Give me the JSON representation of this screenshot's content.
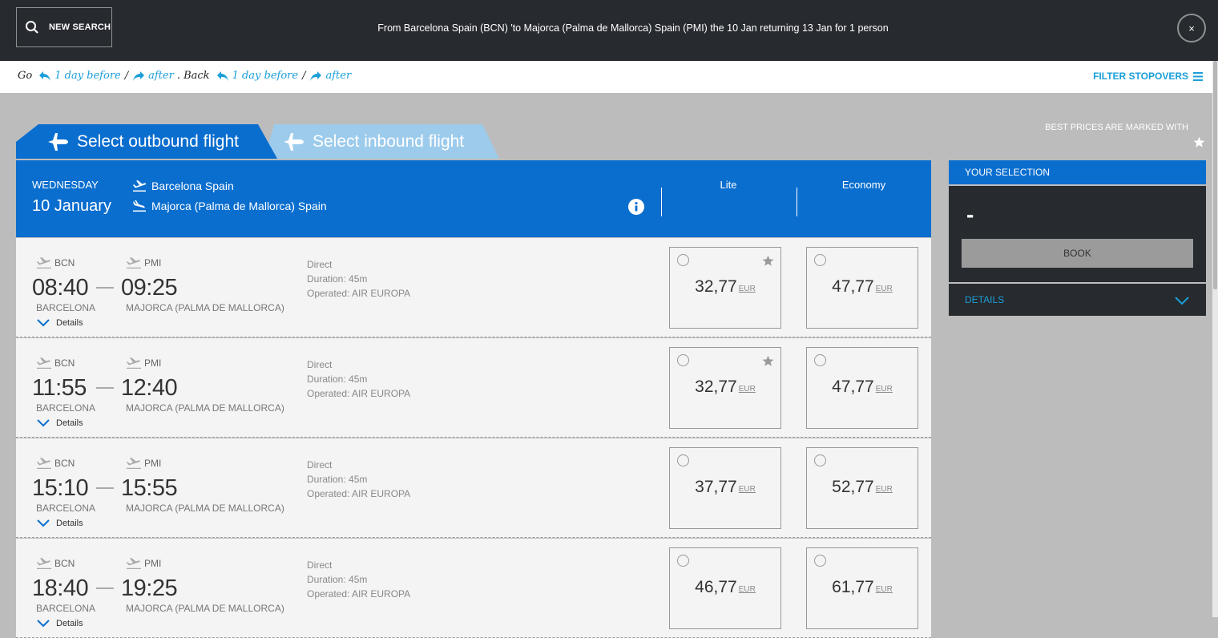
{
  "topbar": {
    "new_search_label": "NEW SEARCH",
    "summary": "From Barcelona Spain (BCN) 'to Majorca (Palma de Mallorca) Spain (PMI) the 10 Jan returning 13 Jan for 1 person",
    "close_label": "×"
  },
  "datenav": {
    "go_label": "Go",
    "go_before": "1 day before",
    "go_after": "after",
    "back_label": ". Back",
    "back_before": "1 day before",
    "back_after": "after",
    "separator": "/"
  },
  "filter_label": "FILTER STOPOVERS",
  "tabs": {
    "outbound": "Select outbound flight",
    "inbound": "Select inbound flight"
  },
  "best_prices_note": "BEST PRICES ARE MARKED WITH",
  "flight_header": {
    "weekday": "WEDNESDAY",
    "date": "10 January",
    "origin": "Barcelona Spain",
    "destination": "Majorca (Palma de Mallorca) Spain",
    "fare_columns": [
      "Lite",
      "Economy"
    ]
  },
  "flights": [
    {
      "dep_code": "BCN",
      "arr_code": "PMI",
      "dep_time": "08:40",
      "arr_time": "09:25",
      "dep_city": "BARCELONA",
      "arr_city": "MAJORCA (PALMA DE MALLORCA)",
      "stops": "Direct",
      "duration": "Duration: 45m",
      "operator": "Operated: AIR EUROPA",
      "details_label": "Details",
      "lite_price": "32,77",
      "economy_price": "47,77",
      "currency": "EUR",
      "lite_best": true
    },
    {
      "dep_code": "BCN",
      "arr_code": "PMI",
      "dep_time": "11:55",
      "arr_time": "12:40",
      "dep_city": "BARCELONA",
      "arr_city": "MAJORCA (PALMA DE MALLORCA)",
      "stops": "Direct",
      "duration": "Duration: 45m",
      "operator": "Operated: AIR EUROPA",
      "details_label": "Details",
      "lite_price": "32,77",
      "economy_price": "47,77",
      "currency": "EUR",
      "lite_best": true
    },
    {
      "dep_code": "BCN",
      "arr_code": "PMI",
      "dep_time": "15:10",
      "arr_time": "15:55",
      "dep_city": "BARCELONA",
      "arr_city": "MAJORCA (PALMA DE MALLORCA)",
      "stops": "Direct",
      "duration": "Duration: 45m",
      "operator": "Operated: AIR EUROPA",
      "details_label": "Details",
      "lite_price": "37,77",
      "economy_price": "52,77",
      "currency": "EUR",
      "lite_best": false
    },
    {
      "dep_code": "BCN",
      "arr_code": "PMI",
      "dep_time": "18:40",
      "arr_time": "19:25",
      "dep_city": "BARCELONA",
      "arr_city": "MAJORCA (PALMA DE MALLORCA)",
      "stops": "Direct",
      "duration": "Duration: 45m",
      "operator": "Operated: AIR EUROPA",
      "details_label": "Details",
      "lite_price": "46,77",
      "economy_price": "61,77",
      "currency": "EUR",
      "lite_best": false
    }
  ],
  "selection": {
    "title": "YOUR SELECTION",
    "amount": "-",
    "book_label": "BOOK",
    "details_label": "DETAILS"
  },
  "colors": {
    "brand_blue": "#0a6ecf",
    "light_blue_tab": "#9dcbec",
    "link_blue": "#1a9fd9",
    "dark_bar": "#272a2e"
  }
}
